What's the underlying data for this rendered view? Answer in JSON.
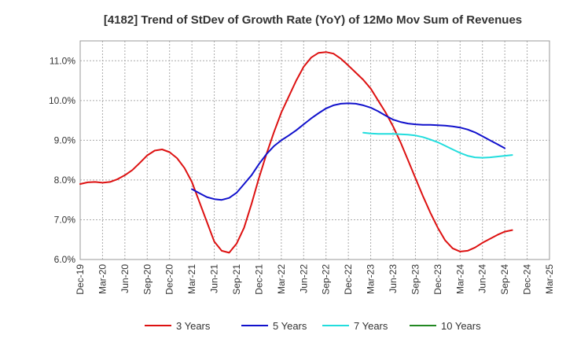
{
  "chart_data": {
    "type": "line",
    "title": "[4182]  Trend of StDev of Growth Rate (YoY) of 12Mo Mov Sum of Revenues",
    "xlabel": "",
    "ylabel": "",
    "ylim": [
      6.0,
      11.5
    ],
    "yticks": [
      6.0,
      7.0,
      8.0,
      9.0,
      10.0,
      11.0
    ],
    "ytick_labels": [
      "6.0%",
      "7.0%",
      "8.0%",
      "9.0%",
      "10.0%",
      "11.0%"
    ],
    "x_ticks": [
      "Dec-19",
      "Mar-20",
      "Jun-20",
      "Sep-20",
      "Dec-20",
      "Mar-21",
      "Jun-21",
      "Sep-21",
      "Dec-21",
      "Mar-22",
      "Jun-22",
      "Sep-22",
      "Dec-22",
      "Mar-23",
      "Jun-23",
      "Sep-23",
      "Dec-23",
      "Mar-24",
      "Jun-24",
      "Sep-24",
      "Dec-24",
      "Mar-25"
    ],
    "grid": true,
    "legend_position": "bottom",
    "series": [
      {
        "name": "3 Years",
        "color": "#dd1111",
        "start_index": 0,
        "values": [
          7.9,
          7.94,
          7.95,
          7.93,
          7.95,
          8.02,
          8.12,
          8.25,
          8.43,
          8.62,
          8.74,
          8.77,
          8.7,
          8.55,
          8.3,
          7.95,
          7.45,
          6.95,
          6.45,
          6.22,
          6.17,
          6.4,
          6.8,
          7.4,
          8.05,
          8.65,
          9.2,
          9.7,
          10.1,
          10.5,
          10.85,
          11.08,
          11.2,
          11.22,
          11.18,
          11.05,
          10.88,
          10.7,
          10.52,
          10.3,
          10.0,
          9.7,
          9.35,
          8.95,
          8.5,
          8.05,
          7.6,
          7.18,
          6.8,
          6.48,
          6.28,
          6.2,
          6.22,
          6.3,
          6.42,
          6.52,
          6.62,
          6.7,
          6.74
        ]
      },
      {
        "name": "5 Years",
        "color": "#1111cc",
        "start_index": 15,
        "values": [
          7.77,
          7.67,
          7.57,
          7.52,
          7.5,
          7.55,
          7.68,
          7.9,
          8.12,
          8.4,
          8.65,
          8.85,
          9.0,
          9.12,
          9.25,
          9.4,
          9.55,
          9.68,
          9.8,
          9.88,
          9.92,
          9.93,
          9.92,
          9.88,
          9.82,
          9.73,
          9.62,
          9.52,
          9.46,
          9.42,
          9.4,
          9.39,
          9.39,
          9.38,
          9.37,
          9.35,
          9.32,
          9.27,
          9.2,
          9.1,
          9.0,
          8.9,
          8.8
        ]
      },
      {
        "name": "7 Years",
        "color": "#22dddd",
        "start_index": 38,
        "values": [
          9.19,
          9.17,
          9.16,
          9.16,
          9.16,
          9.15,
          9.14,
          9.12,
          9.08,
          9.02,
          8.95,
          8.86,
          8.77,
          8.68,
          8.61,
          8.57,
          8.56,
          8.57,
          8.59,
          8.61,
          8.63
        ]
      },
      {
        "name": "10 Years",
        "color": "#228822",
        "start_index": 0,
        "values": []
      }
    ]
  }
}
